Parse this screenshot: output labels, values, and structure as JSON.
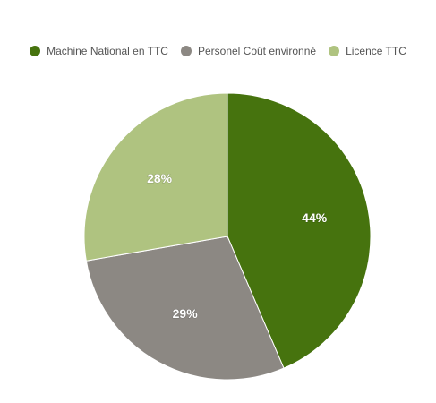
{
  "chart_data": {
    "type": "pie",
    "title": "",
    "legend_position": "top",
    "categories": [
      "Machine National en TTC",
      "Personel Coût environné",
      "Licence TTC"
    ],
    "values": [
      44,
      29,
      28
    ],
    "labels": [
      "44%",
      "29%",
      "28%"
    ],
    "colors": [
      "#46730e",
      "#8c8883",
      "#afc380"
    ]
  }
}
